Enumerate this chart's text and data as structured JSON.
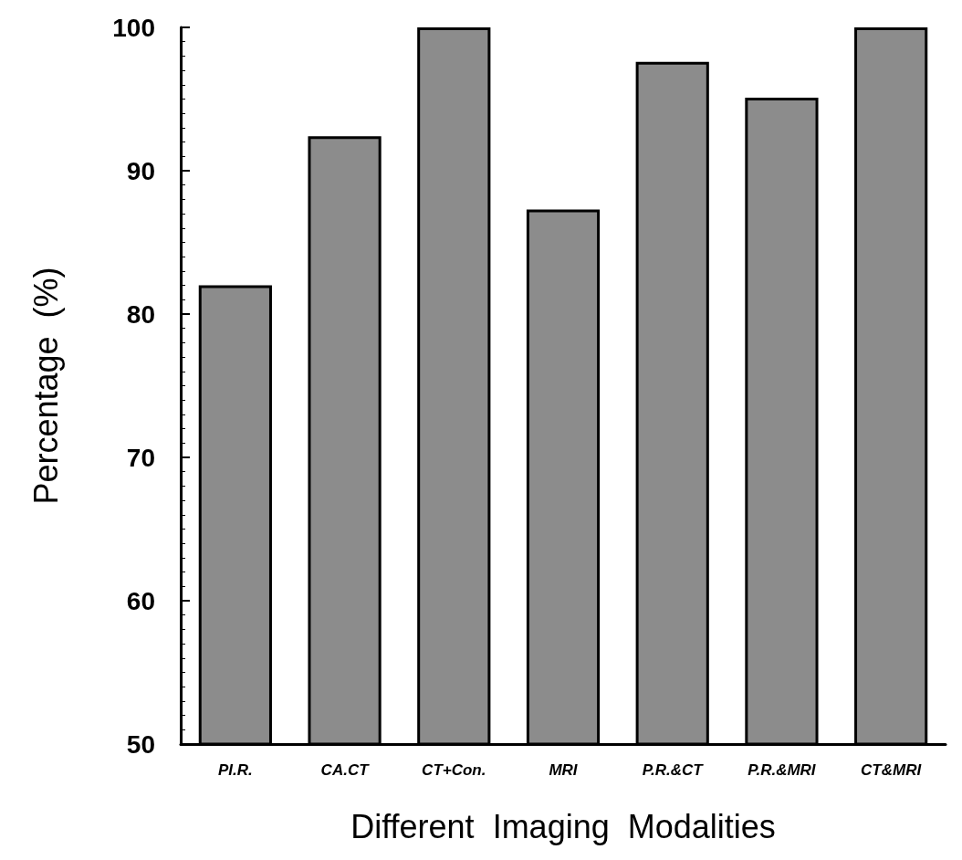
{
  "chart_data": {
    "type": "bar",
    "xlabel": "Different  Imaging  Modalities",
    "ylabel": "Percentage  (%)",
    "categories": [
      "PI.R.",
      "CA.CT",
      "CT+Con.",
      "MRI",
      "P.R.&CT",
      "P.R.&MRI",
      "CT&MRI"
    ],
    "values": [
      82,
      92.4,
      100,
      87.3,
      97.6,
      95.1,
      100
    ],
    "color": "#8c8c8c",
    "ylim": [
      50,
      100
    ],
    "yticks": [
      50,
      60,
      70,
      80,
      90,
      100
    ]
  }
}
